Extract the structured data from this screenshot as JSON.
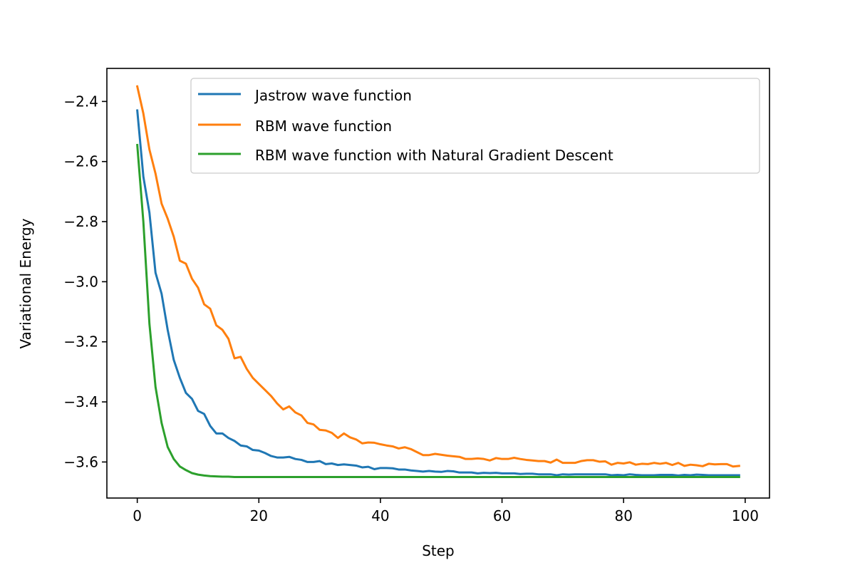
{
  "chart_data": {
    "type": "line",
    "title": "",
    "xlabel": "Step",
    "ylabel": "Variational Energy",
    "xlim": [
      -5,
      104
    ],
    "ylim": [
      -3.72,
      -2.29
    ],
    "xticks": [
      0,
      20,
      40,
      60,
      80,
      100
    ],
    "xtick_labels": [
      "0",
      "20",
      "40",
      "60",
      "80",
      "100"
    ],
    "yticks": [
      -2.4,
      -2.6,
      -2.8,
      -3.0,
      -3.2,
      -3.4,
      -3.6
    ],
    "ytick_labels": [
      "−2.4",
      "−2.6",
      "−2.8",
      "−3.0",
      "−3.2",
      "−3.4",
      "−3.6"
    ],
    "grid": false,
    "legend_position": "top-right",
    "series": [
      {
        "name": "Jastrow wave function",
        "color": "#1f77b4",
        "x": [
          0,
          1,
          2,
          3,
          4,
          5,
          6,
          7,
          8,
          9,
          10,
          11,
          12,
          13,
          14,
          15,
          16,
          17,
          18,
          19,
          20,
          21,
          22,
          23,
          24,
          25,
          26,
          27,
          28,
          29,
          30,
          31,
          32,
          33,
          34,
          35,
          36,
          37,
          38,
          39,
          40,
          41,
          42,
          43,
          44,
          45,
          46,
          47,
          48,
          49,
          50,
          51,
          52,
          53,
          54,
          55,
          56,
          57,
          58,
          59,
          60,
          61,
          62,
          63,
          64,
          65,
          66,
          67,
          68,
          69,
          70,
          71,
          72,
          73,
          74,
          75,
          76,
          77,
          78,
          79,
          80,
          81,
          82,
          83,
          84,
          85,
          86,
          87,
          88,
          89,
          90,
          91,
          92,
          93,
          94,
          95,
          96,
          97,
          98,
          99
        ],
        "y": [
          -2.43,
          -2.65,
          -2.77,
          -2.97,
          -3.04,
          -3.16,
          -3.26,
          -3.32,
          -3.37,
          -3.39,
          -3.43,
          -3.44,
          -3.48,
          -3.505,
          -3.505,
          -3.52,
          -3.53,
          -3.545,
          -3.548,
          -3.56,
          -3.562,
          -3.57,
          -3.58,
          -3.585,
          -3.585,
          -3.583,
          -3.59,
          -3.593,
          -3.6,
          -3.6,
          -3.597,
          -3.607,
          -3.605,
          -3.61,
          -3.608,
          -3.61,
          -3.612,
          -3.618,
          -3.616,
          -3.624,
          -3.62,
          -3.62,
          -3.621,
          -3.625,
          -3.625,
          -3.628,
          -3.63,
          -3.632,
          -3.63,
          -3.632,
          -3.633,
          -3.63,
          -3.631,
          -3.635,
          -3.635,
          -3.635,
          -3.638,
          -3.636,
          -3.637,
          -3.636,
          -3.638,
          -3.638,
          -3.638,
          -3.64,
          -3.639,
          -3.639,
          -3.641,
          -3.641,
          -3.641,
          -3.644,
          -3.641,
          -3.642,
          -3.641,
          -3.641,
          -3.641,
          -3.641,
          -3.641,
          -3.641,
          -3.644,
          -3.643,
          -3.644,
          -3.641,
          -3.643,
          -3.644,
          -3.644,
          -3.644,
          -3.643,
          -3.643,
          -3.643,
          -3.645,
          -3.643,
          -3.644,
          -3.642,
          -3.643,
          -3.644,
          -3.644,
          -3.644,
          -3.644,
          -3.644,
          -3.644
        ]
      },
      {
        "name": "RBM wave function",
        "color": "#ff7f0e",
        "x": [
          0,
          1,
          2,
          3,
          4,
          5,
          6,
          7,
          8,
          9,
          10,
          11,
          12,
          13,
          14,
          15,
          16,
          17,
          18,
          19,
          20,
          21,
          22,
          23,
          24,
          25,
          26,
          27,
          28,
          29,
          30,
          31,
          32,
          33,
          34,
          35,
          36,
          37,
          38,
          39,
          40,
          41,
          42,
          43,
          44,
          45,
          46,
          47,
          48,
          49,
          50,
          51,
          52,
          53,
          54,
          55,
          56,
          57,
          58,
          59,
          60,
          61,
          62,
          63,
          64,
          65,
          66,
          67,
          68,
          69,
          70,
          71,
          72,
          73,
          74,
          75,
          76,
          77,
          78,
          79,
          80,
          81,
          82,
          83,
          84,
          85,
          86,
          87,
          88,
          89,
          90,
          91,
          92,
          93,
          94,
          95,
          96,
          97,
          98,
          99
        ],
        "y": [
          -2.35,
          -2.44,
          -2.56,
          -2.64,
          -2.74,
          -2.79,
          -2.85,
          -2.93,
          -2.94,
          -2.99,
          -3.02,
          -3.075,
          -3.09,
          -3.145,
          -3.16,
          -3.19,
          -3.255,
          -3.25,
          -3.29,
          -3.32,
          -3.34,
          -3.36,
          -3.38,
          -3.405,
          -3.425,
          -3.415,
          -3.435,
          -3.445,
          -3.47,
          -3.475,
          -3.493,
          -3.495,
          -3.503,
          -3.52,
          -3.505,
          -3.518,
          -3.525,
          -3.538,
          -3.535,
          -3.536,
          -3.541,
          -3.545,
          -3.548,
          -3.555,
          -3.551,
          -3.557,
          -3.567,
          -3.577,
          -3.577,
          -3.573,
          -3.576,
          -3.579,
          -3.581,
          -3.583,
          -3.59,
          -3.59,
          -3.588,
          -3.59,
          -3.595,
          -3.587,
          -3.59,
          -3.59,
          -3.586,
          -3.59,
          -3.593,
          -3.595,
          -3.597,
          -3.597,
          -3.602,
          -3.592,
          -3.603,
          -3.603,
          -3.603,
          -3.597,
          -3.594,
          -3.594,
          -3.599,
          -3.598,
          -3.609,
          -3.603,
          -3.605,
          -3.601,
          -3.609,
          -3.606,
          -3.607,
          -3.603,
          -3.606,
          -3.603,
          -3.61,
          -3.603,
          -3.613,
          -3.609,
          -3.611,
          -3.614,
          -3.606,
          -3.608,
          -3.607,
          -3.607,
          -3.615,
          -3.613
        ]
      },
      {
        "name": "RBM wave function with Natural Gradient Descent",
        "color": "#2ca02c",
        "x": [
          0,
          1,
          2,
          3,
          4,
          5,
          6,
          7,
          8,
          9,
          10,
          11,
          12,
          13,
          14,
          15,
          16,
          17,
          18,
          19,
          20,
          21,
          22,
          23,
          24,
          25,
          26,
          27,
          28,
          29,
          30,
          31,
          32,
          33,
          34,
          35,
          36,
          37,
          38,
          39,
          40,
          41,
          42,
          43,
          44,
          45,
          46,
          47,
          48,
          49,
          50,
          51,
          52,
          53,
          54,
          55,
          56,
          57,
          58,
          59,
          60,
          61,
          62,
          63,
          64,
          65,
          66,
          67,
          68,
          69,
          70,
          71,
          72,
          73,
          74,
          75,
          76,
          77,
          78,
          79,
          80,
          81,
          82,
          83,
          84,
          85,
          86,
          87,
          88,
          89,
          90,
          91,
          92,
          93,
          94,
          95,
          96,
          97,
          98,
          99
        ],
        "y": [
          -2.545,
          -2.8,
          -3.14,
          -3.35,
          -3.47,
          -3.55,
          -3.59,
          -3.615,
          -3.627,
          -3.637,
          -3.642,
          -3.645,
          -3.647,
          -3.648,
          -3.649,
          -3.649,
          -3.65,
          -3.65,
          -3.65,
          -3.65,
          -3.65,
          -3.65,
          -3.65,
          -3.65,
          -3.65,
          -3.65,
          -3.65,
          -3.65,
          -3.65,
          -3.65,
          -3.65,
          -3.65,
          -3.65,
          -3.65,
          -3.65,
          -3.65,
          -3.65,
          -3.65,
          -3.65,
          -3.65,
          -3.65,
          -3.65,
          -3.65,
          -3.65,
          -3.65,
          -3.65,
          -3.65,
          -3.65,
          -3.65,
          -3.65,
          -3.65,
          -3.65,
          -3.65,
          -3.65,
          -3.65,
          -3.65,
          -3.65,
          -3.65,
          -3.65,
          -3.65,
          -3.65,
          -3.65,
          -3.65,
          -3.65,
          -3.65,
          -3.65,
          -3.65,
          -3.65,
          -3.65,
          -3.65,
          -3.65,
          -3.65,
          -3.65,
          -3.65,
          -3.65,
          -3.65,
          -3.65,
          -3.65,
          -3.65,
          -3.65,
          -3.65,
          -3.65,
          -3.65,
          -3.65,
          -3.65,
          -3.65,
          -3.65,
          -3.65,
          -3.65,
          -3.65,
          -3.65,
          -3.65,
          -3.65,
          -3.65,
          -3.65,
          -3.65,
          -3.65,
          -3.65,
          -3.65,
          -3.65
        ]
      }
    ]
  }
}
